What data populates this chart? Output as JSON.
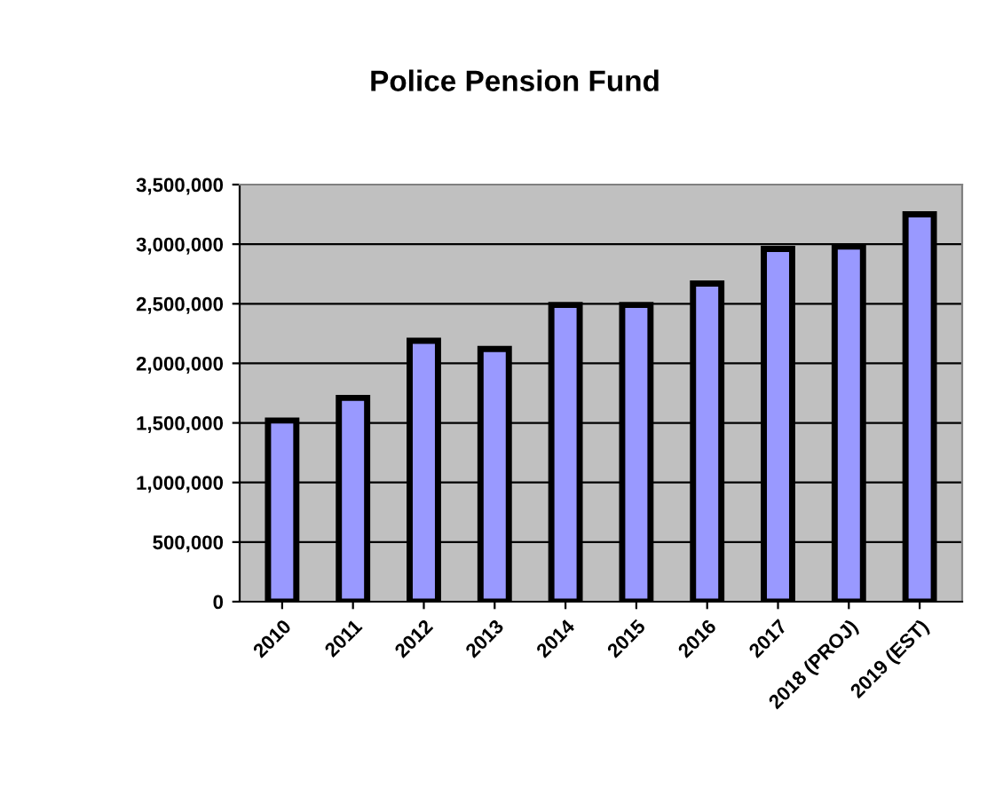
{
  "chart_data": {
    "type": "bar",
    "title": "Police Pension Fund",
    "categories": [
      "2010",
      "2011",
      "2012",
      "2013",
      "2014",
      "2015",
      "2016",
      "2017",
      "2018 (PROJ)",
      "2019 (EST)"
    ],
    "values": [
      1520000,
      1710000,
      2190000,
      2120000,
      2490000,
      2490000,
      2670000,
      2960000,
      2980000,
      3250000
    ],
    "color": "#9999ff",
    "ylim": [
      0,
      3500000
    ],
    "yticks": [
      {
        "value": 0,
        "label": "0"
      },
      {
        "value": 500000,
        "label": "500,000"
      },
      {
        "value": 1000000,
        "label": "1,000,000"
      },
      {
        "value": 1500000,
        "label": "1,500,000"
      },
      {
        "value": 2000000,
        "label": "2,000,000"
      },
      {
        "value": 2500000,
        "label": "2,500,000"
      },
      {
        "value": 3000000,
        "label": "3,000,000"
      },
      {
        "value": 3500000,
        "label": "3,500,000"
      }
    ],
    "grid": "y"
  }
}
